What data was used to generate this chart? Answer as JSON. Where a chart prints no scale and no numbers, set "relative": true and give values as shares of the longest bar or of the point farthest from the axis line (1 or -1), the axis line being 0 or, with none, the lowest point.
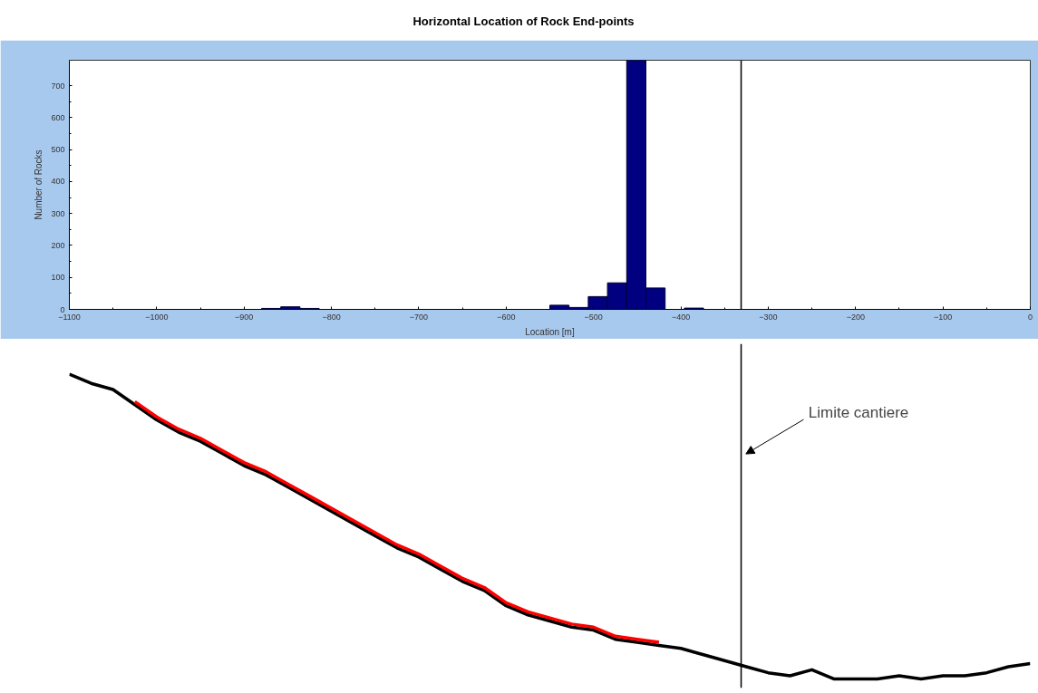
{
  "chart_data": [
    {
      "type": "histogram",
      "title": "Horizontal Location of Rock End-points",
      "xlabel": "Location [m]",
      "ylabel": "Number of Rocks",
      "bins": [
        -1100,
        -1078,
        -1056,
        -1034,
        -1012,
        -990,
        -968,
        -946,
        -924,
        -902,
        -880,
        -858,
        -836,
        -814,
        -792,
        -770,
        -748,
        -726,
        -704,
        -682,
        -660,
        -638,
        -616,
        -594,
        -572,
        -550,
        -528,
        -506,
        -484,
        -462,
        -440,
        -418,
        -396,
        -374,
        -352,
        -330,
        -308,
        -286,
        -264,
        -242,
        -220,
        -198,
        -176,
        -154,
        -132,
        -110,
        -88,
        -66,
        -44,
        -22,
        0
      ],
      "values": [
        0,
        0,
        0,
        0,
        0,
        0,
        0,
        0,
        0,
        0,
        3,
        8,
        3,
        0,
        0,
        0,
        0,
        0,
        0,
        0,
        0,
        0,
        0,
        0,
        0,
        13,
        6,
        40,
        83,
        780,
        67,
        0,
        4,
        0,
        0,
        0,
        0,
        0,
        0,
        0,
        0,
        0,
        0,
        0,
        0,
        0,
        0,
        0,
        0,
        0
      ],
      "color": "#000080",
      "xlim": [
        -1100,
        0
      ],
      "xticks": [
        -1100,
        -1000,
        -900,
        -800,
        -700,
        -600,
        -500,
        -400,
        -300,
        -200,
        -100,
        0
      ],
      "ylim": [
        0,
        780
      ],
      "yticks": [
        0,
        100,
        200,
        300,
        400,
        500,
        600,
        700
      ],
      "grid": false,
      "ref_lines": [
        {
          "axis": "x",
          "value": -331,
          "color": "#000000"
        }
      ]
    },
    {
      "type": "line",
      "relative": true,
      "tick_labels": false,
      "grid": false,
      "annotations": [
        "Limite cantiere"
      ],
      "categories": [
        null,
        null,
        null,
        null,
        null,
        null,
        null,
        null,
        null,
        null,
        null,
        null,
        null,
        null,
        null,
        null,
        null,
        null,
        null,
        null,
        null,
        null,
        null,
        null,
        null,
        null,
        null,
        null,
        null,
        null,
        null,
        null,
        null,
        null,
        null,
        null,
        null,
        null,
        null,
        null,
        null,
        null,
        null,
        null,
        null
      ],
      "series": [
        {
          "color": "#000000",
          "values": [
            1.0,
            0.97,
            0.95,
            0.9,
            0.85,
            0.81,
            0.78,
            0.74,
            0.7,
            0.67,
            0.63,
            0.59,
            0.55,
            0.51,
            0.47,
            0.43,
            0.4,
            0.36,
            0.32,
            0.29,
            0.24,
            0.21,
            0.19,
            0.17,
            0.16,
            0.13,
            0.12,
            0.11,
            0.1,
            0.08,
            0.06,
            0.04,
            0.02,
            0.01,
            0.03,
            0.0,
            0.0,
            0.0,
            0.01,
            0.0,
            0.01,
            0.01,
            0.02,
            0.04,
            0.05
          ]
        },
        {
          "color": "#ff0000",
          "values": [
            null,
            null,
            null,
            0.91,
            0.86,
            0.82,
            0.79,
            0.75,
            0.71,
            0.68,
            0.64,
            0.6,
            0.56,
            0.52,
            0.48,
            0.44,
            0.41,
            0.37,
            0.33,
            0.3,
            0.25,
            0.22,
            0.2,
            0.18,
            0.17,
            0.14,
            0.13,
            0.12,
            null,
            null,
            null,
            null,
            null,
            null,
            null,
            null,
            null,
            null,
            null,
            null,
            null,
            null,
            null,
            null,
            null
          ]
        }
      ]
    }
  ]
}
